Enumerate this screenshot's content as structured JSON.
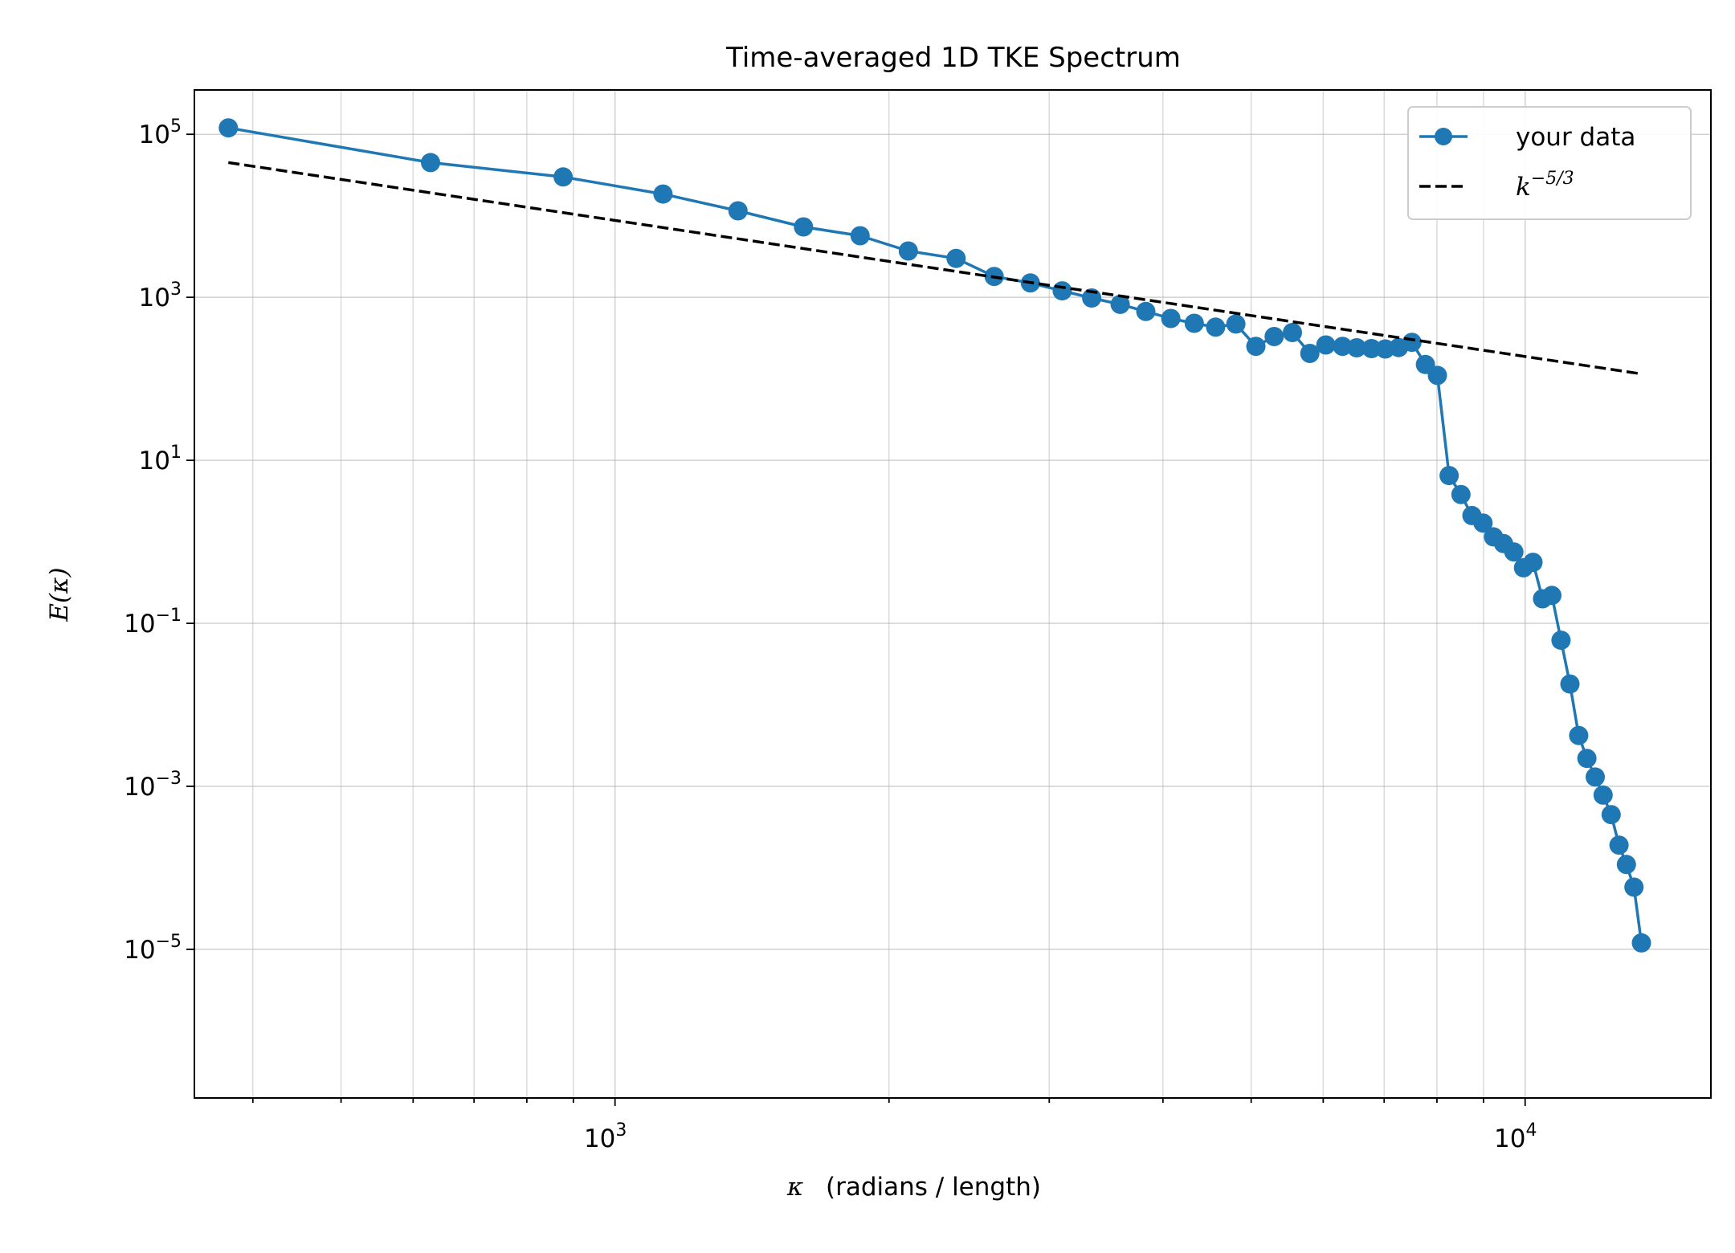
{
  "chart_data": {
    "type": "line",
    "title": "Time-averaged 1D TKE Spectrum",
    "xlabel": "(radians / length)",
    "xlabel_symbol": "κ",
    "ylabel": "E(κ)",
    "x_scale": "log",
    "y_scale": "log",
    "xlim": [
      345,
      16000
    ],
    "ylim": [
      1.5e-07,
      350000
    ],
    "x_ticks": [
      {
        "value": 1000,
        "base": "10",
        "exp": "3"
      },
      {
        "value": 10000,
        "base": "10",
        "exp": "4"
      }
    ],
    "y_ticks": [
      {
        "value": 100000.0,
        "base": "10",
        "exp": "5"
      },
      {
        "value": 1000.0,
        "base": "10",
        "exp": "3"
      },
      {
        "value": 10.0,
        "base": "10",
        "exp": "1"
      },
      {
        "value": 0.1,
        "base": "10",
        "exp": "−1"
      },
      {
        "value": 0.001,
        "base": "10",
        "exp": "−3"
      },
      {
        "value": 1e-05,
        "base": "10",
        "exp": "−5"
      }
    ],
    "grid": true,
    "legend_position": "top-right",
    "series": [
      {
        "name": "your data",
        "style": "line-markers",
        "color": "#1f77b4",
        "x": [
          376,
          627,
          877,
          1129,
          1365,
          1611,
          1859,
          2100,
          2370,
          2610,
          2860,
          3100,
          3340,
          3590,
          3830,
          4080,
          4330,
          4570,
          4810,
          5060,
          5300,
          5550,
          5800,
          6040,
          6300,
          6530,
          6780,
          7020,
          7260,
          7510,
          7770,
          8010,
          8250,
          8500,
          8740,
          8990,
          9230,
          9470,
          9720,
          9960,
          10200,
          10450,
          10700,
          10950,
          11200,
          11450,
          11690,
          11940,
          12180,
          12430,
          12680,
          12920,
          13170,
          13420
        ],
        "y": [
          120000,
          45000,
          30000,
          18500,
          11500,
          7300,
          5700,
          3700,
          3000,
          1800,
          1500,
          1200,
          980,
          820,
          670,
          550,
          480,
          430,
          470,
          250,
          330,
          370,
          205,
          260,
          250,
          240,
          235,
          232,
          242,
          280,
          150,
          110,
          6.5,
          3.8,
          2.1,
          1.7,
          1.15,
          0.95,
          0.75,
          0.48,
          0.56,
          0.2,
          0.22,
          0.062,
          0.018,
          0.0042,
          0.0022,
          0.0013,
          0.00078,
          0.00045,
          0.00019,
          0.00011,
          5.8e-05,
          1.2e-05
        ]
      },
      {
        "name": "k",
        "name_superscript": "−5/3",
        "style": "dashed",
        "color": "#000000",
        "x": [
          376,
          13420
        ],
        "y": [
          45000,
          115
        ]
      }
    ]
  }
}
